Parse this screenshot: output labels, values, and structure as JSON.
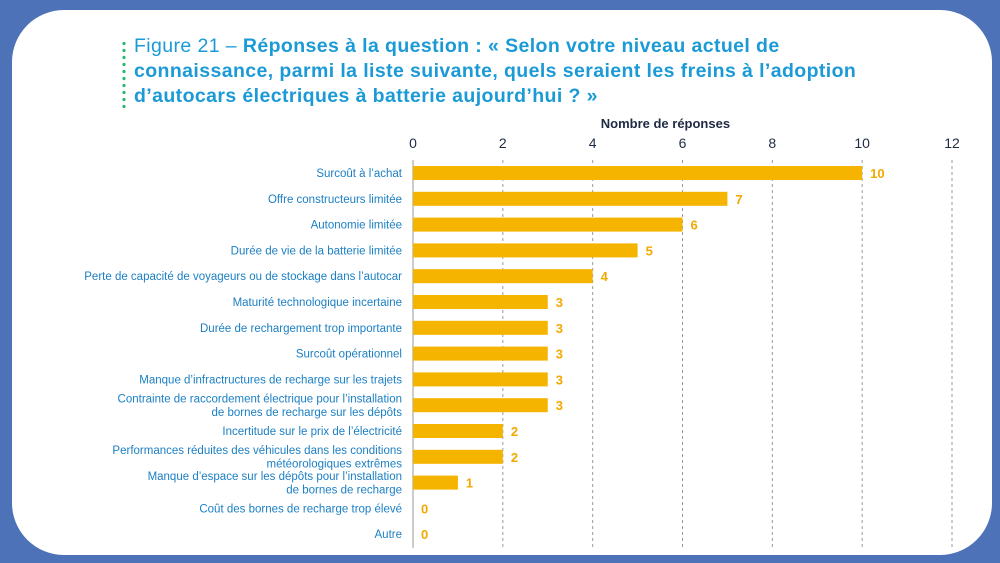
{
  "title": {
    "prefix": "Figure 21 – ",
    "question": "Réponses à la question : « Selon votre niveau actuel de connaissance, parmi la liste suivante, quels seraient les freins à l’adoption d’autocars électriques à batterie aujourd’hui ? »"
  },
  "colors": {
    "background": "#4d72b8",
    "card": "#ffffff",
    "bar": "#f5b400",
    "value_label": "#f2a900",
    "category_label": "#1b7fc3",
    "title": "#1b9ad6",
    "title_dots": "#2bb673",
    "grid": "#9a9a9a"
  },
  "chart_data": {
    "type": "bar",
    "orientation": "horizontal",
    "xlabel": "Nombre de réponses",
    "xaxis_position": "top",
    "xlim": [
      0,
      12
    ],
    "xticks": [
      0,
      2,
      4,
      6,
      8,
      10,
      12
    ],
    "grid": "vertical-dashed",
    "categories": [
      [
        "Surcoût à l’achat"
      ],
      [
        "Offre constructeurs limitée"
      ],
      [
        "Autonomie limitée"
      ],
      [
        "Durée de vie de la batterie limitée"
      ],
      [
        "Perte de capacité de voyageurs ou de stockage dans l’autocar"
      ],
      [
        "Maturité technologique incertaine"
      ],
      [
        "Durée de rechargement trop importante"
      ],
      [
        "Surcoût opérationnel"
      ],
      [
        "Manque d’infractructures de recharge sur les trajets"
      ],
      [
        "Contrainte de raccordement électrique pour l’installation",
        "de bornes de recharge sur les dépôts"
      ],
      [
        "Incertitude sur le prix de l’électricité"
      ],
      [
        "Performances réduites des véhicules dans les conditions",
        "météorologiques extrêmes"
      ],
      [
        "Manque d’espace sur les dépôts pour l’installation",
        "de bornes de recharge"
      ],
      [
        "Coût des bornes de recharge trop élevé"
      ],
      [
        "Autre"
      ]
    ],
    "values": [
      10,
      7,
      6,
      5,
      4,
      3,
      3,
      3,
      3,
      3,
      2,
      2,
      1,
      0,
      0
    ]
  }
}
